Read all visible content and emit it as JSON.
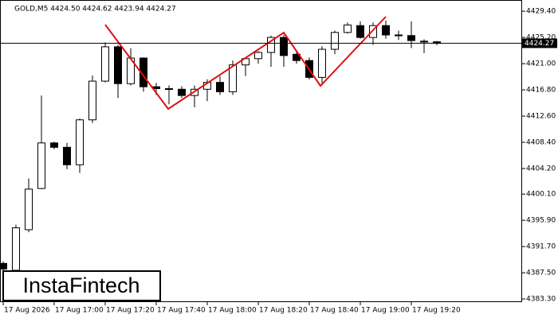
{
  "chart_data": {
    "type": "candlestick",
    "title": "GOLD,M5  4424.50 4424.62 4423.94 4424.27",
    "brand": "InstaFintech",
    "categories": [
      "17 Aug 2026",
      null,
      null,
      null,
      "17 Aug 17:00",
      null,
      null,
      null,
      "17 Aug 17:20",
      null,
      null,
      null,
      "17 Aug 17:40",
      null,
      null,
      null,
      "17 Aug 18:00",
      null,
      null,
      null,
      "17 Aug 18:20",
      null,
      null,
      null,
      "17 Aug 18:40",
      null,
      null,
      null,
      "17 Aug 19:00",
      null,
      null,
      null,
      "17 Aug 19:20",
      null,
      null
    ],
    "open": [
      4389.0,
      4387.9,
      4394.4,
      4401.0,
      4408.3,
      4407.6,
      4404.8,
      4412.0,
      4418.2,
      4423.7,
      4417.8,
      4421.9,
      4417.3,
      4416.9,
      4416.9,
      4415.9,
      4416.9,
      4418.0,
      4416.5,
      4420.8,
      4421.8,
      4422.8,
      4425.2,
      4422.5,
      4421.5,
      4418.8,
      4423.3,
      4426.0,
      4427.1,
      4425.2,
      4427.1,
      4425.6,
      4425.5,
      4424.6,
      4424.5
    ],
    "high": [
      4389.3,
      4395.2,
      4402.6,
      4415.9,
      4408.5,
      4408.3,
      4412.2,
      4419.1,
      4424.4,
      4424.0,
      4423.5,
      4422.0,
      4417.9,
      4417.5,
      4417.4,
      4417.5,
      4418.5,
      4419.0,
      4421.5,
      4422.0,
      4423.0,
      4425.5,
      4425.6,
      4423.0,
      4422.0,
      4423.8,
      4426.3,
      4427.6,
      4427.8,
      4427.6,
      4427.9,
      4426.3,
      4427.8,
      4424.9,
      4424.62
    ],
    "low": [
      4387.3,
      4387.3,
      4394.0,
      4400.9,
      4407.3,
      4404.1,
      4403.5,
      4411.5,
      4418.0,
      4415.5,
      4417.5,
      4416.5,
      4416.0,
      4414.5,
      4415.5,
      4414.0,
      4415.0,
      4416.0,
      4416.0,
      4419.0,
      4421.0,
      4420.5,
      4420.5,
      4421.0,
      4418.5,
      4417.5,
      4422.5,
      4425.8,
      4425.0,
      4424.0,
      4425.0,
      4424.8,
      4423.5,
      4422.7,
      4423.94
    ],
    "close": [
      4388.1,
      4394.7,
      4400.9,
      4408.3,
      4407.6,
      4404.8,
      4412.0,
      4418.2,
      4423.7,
      4417.8,
      4421.9,
      4417.3,
      4417.0,
      4417.0,
      4415.9,
      4416.9,
      4418.0,
      4416.5,
      4420.8,
      4421.8,
      4422.8,
      4425.2,
      4422.3,
      4421.5,
      4418.8,
      4423.3,
      4426.0,
      4427.2,
      4425.2,
      4427.1,
      4425.6,
      4425.5,
      4424.7,
      4424.5,
      4424.27
    ],
    "current_price": 4424.27,
    "ylim": [
      4382.8,
      4431.2
    ],
    "yticks": [
      {
        "value": 4429.4,
        "label": "4429.40"
      },
      {
        "value": 4425.2,
        "label": "4425.20"
      },
      {
        "value": 4421.0,
        "label": "4421.00"
      },
      {
        "value": 4416.8,
        "label": "4416.80"
      },
      {
        "value": 4412.6,
        "label": "4412.60"
      },
      {
        "value": 4408.4,
        "label": "4408.40"
      },
      {
        "value": 4404.2,
        "label": "4404.20"
      },
      {
        "value": 4400.1,
        "label": "4400.10"
      },
      {
        "value": 4395.9,
        "label": "4395.90"
      },
      {
        "value": 4391.7,
        "label": "4391.70"
      },
      {
        "value": 4387.5,
        "label": "4387.50"
      },
      {
        "value": 4383.3,
        "label": "4383.30"
      }
    ],
    "up_color": "#ffffff",
    "down_color": "#000000",
    "pattern_color": "#e01010"
  }
}
